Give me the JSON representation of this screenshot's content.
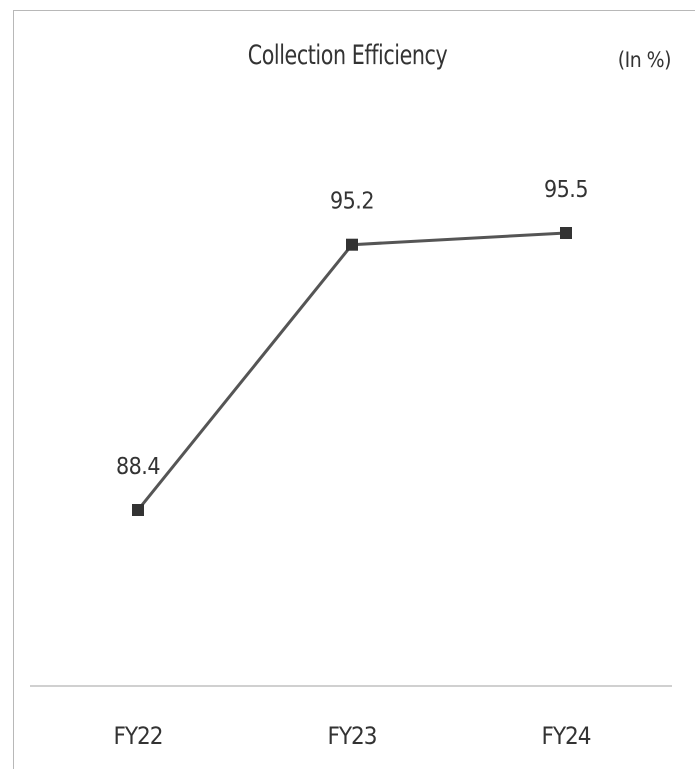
{
  "chart_data": {
    "type": "line",
    "title": "Collection Efficiency",
    "unit_label": "(In %)",
    "categories": [
      "FY22",
      "FY23",
      "FY24"
    ],
    "series": [
      {
        "values": [
          88.4,
          95.2,
          95.5
        ],
        "color": "#555555"
      }
    ],
    "data_labels": [
      "88.4",
      "95.2",
      "95.5"
    ],
    "ylim": [
      80,
      100
    ],
    "grid": false,
    "legend": "none",
    "colors": {
      "line": "#555555",
      "marker": "#333333",
      "axis": "#d0d0d0",
      "frame": "#b8b8b8",
      "text": "#333333"
    }
  }
}
